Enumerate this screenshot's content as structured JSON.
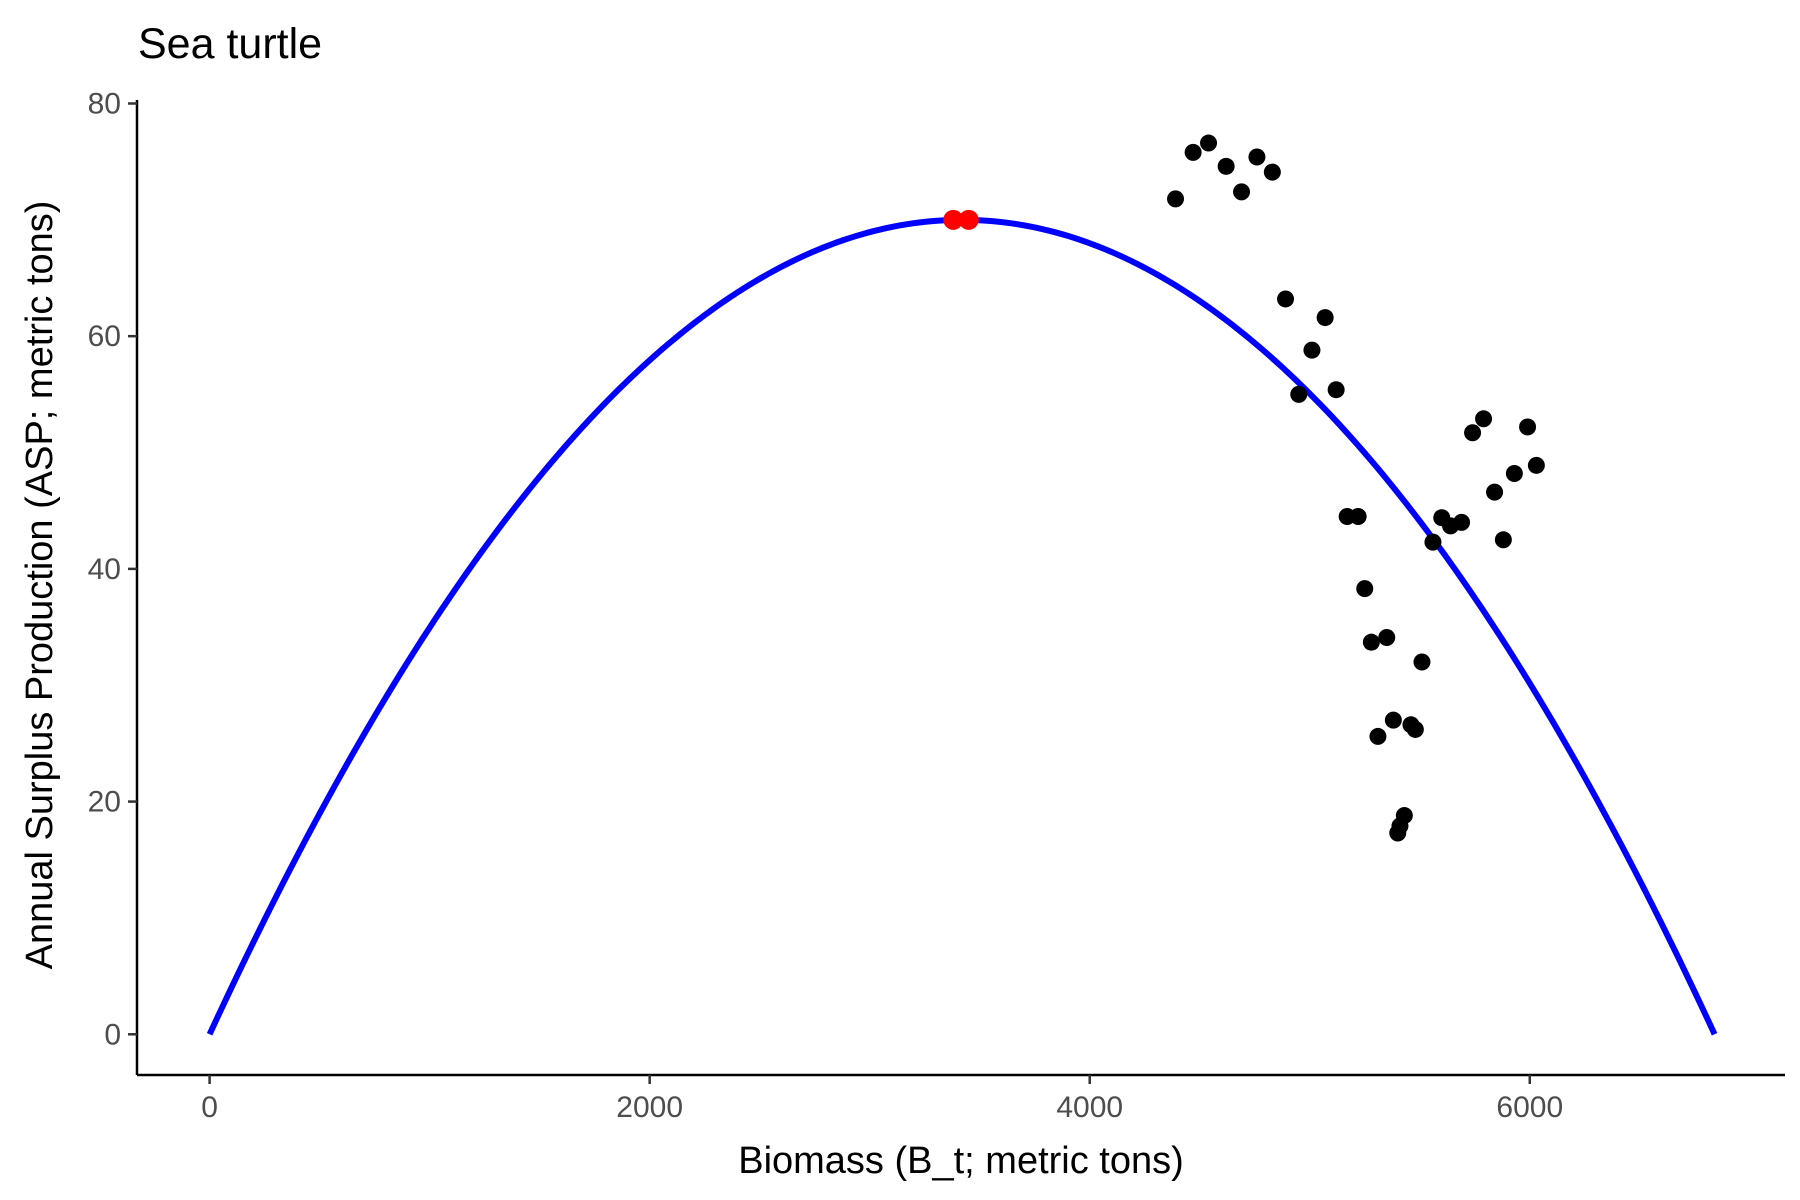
{
  "chart_data": {
    "type": "scatter",
    "title": "Sea turtle",
    "xlabel": "Biomass (B_t; metric tons)",
    "ylabel": "Annual Surplus Production (ASP; metric tons)",
    "xlim": [
      -330,
      7160
    ],
    "ylim": [
      -3.5,
      80.3
    ],
    "xticks": [
      0,
      2000,
      4000,
      6000
    ],
    "yticks": [
      0,
      20,
      40,
      60,
      80
    ],
    "grid": false,
    "legend": "none",
    "colors": {
      "points": "#000000",
      "curve": "#0000ff",
      "msy_points": "#ff0000",
      "axis": "#000000"
    },
    "curve": {
      "type": "parabola",
      "name": "",
      "K": 6840,
      "MSY": 70.0,
      "x_start": 0,
      "x_end": 6840
    },
    "msy_points": [
      {
        "x": 3380,
        "y": 70.0
      },
      {
        "x": 3450,
        "y": 70.0
      }
    ],
    "points": [
      {
        "x": 4390,
        "y": 71.8
      },
      {
        "x": 4470,
        "y": 75.8
      },
      {
        "x": 4540,
        "y": 76.6
      },
      {
        "x": 4620,
        "y": 74.6
      },
      {
        "x": 4690,
        "y": 72.4
      },
      {
        "x": 4760,
        "y": 75.4
      },
      {
        "x": 4830,
        "y": 74.1
      },
      {
        "x": 4890,
        "y": 63.2
      },
      {
        "x": 4950,
        "y": 55.0
      },
      {
        "x": 5010,
        "y": 58.8
      },
      {
        "x": 5070,
        "y": 61.6
      },
      {
        "x": 5120,
        "y": 55.4
      },
      {
        "x": 5170,
        "y": 44.5
      },
      {
        "x": 5220,
        "y": 44.5
      },
      {
        "x": 5250,
        "y": 38.3
      },
      {
        "x": 5280,
        "y": 33.7
      },
      {
        "x": 5350,
        "y": 34.1
      },
      {
        "x": 5310,
        "y": 25.6
      },
      {
        "x": 5380,
        "y": 27.0
      },
      {
        "x": 5400,
        "y": 17.3
      },
      {
        "x": 5410,
        "y": 17.9
      },
      {
        "x": 5430,
        "y": 18.8
      },
      {
        "x": 5460,
        "y": 26.6
      },
      {
        "x": 5480,
        "y": 26.2
      },
      {
        "x": 5510,
        "y": 32.0
      },
      {
        "x": 5560,
        "y": 42.3
      },
      {
        "x": 5600,
        "y": 44.4
      },
      {
        "x": 5640,
        "y": 43.7
      },
      {
        "x": 5690,
        "y": 44.0
      },
      {
        "x": 5740,
        "y": 51.7
      },
      {
        "x": 5790,
        "y": 52.9
      },
      {
        "x": 5840,
        "y": 46.6
      },
      {
        "x": 5880,
        "y": 42.5
      },
      {
        "x": 5930,
        "y": 48.2
      },
      {
        "x": 5990,
        "y": 52.2
      },
      {
        "x": 6030,
        "y": 48.9
      }
    ]
  }
}
